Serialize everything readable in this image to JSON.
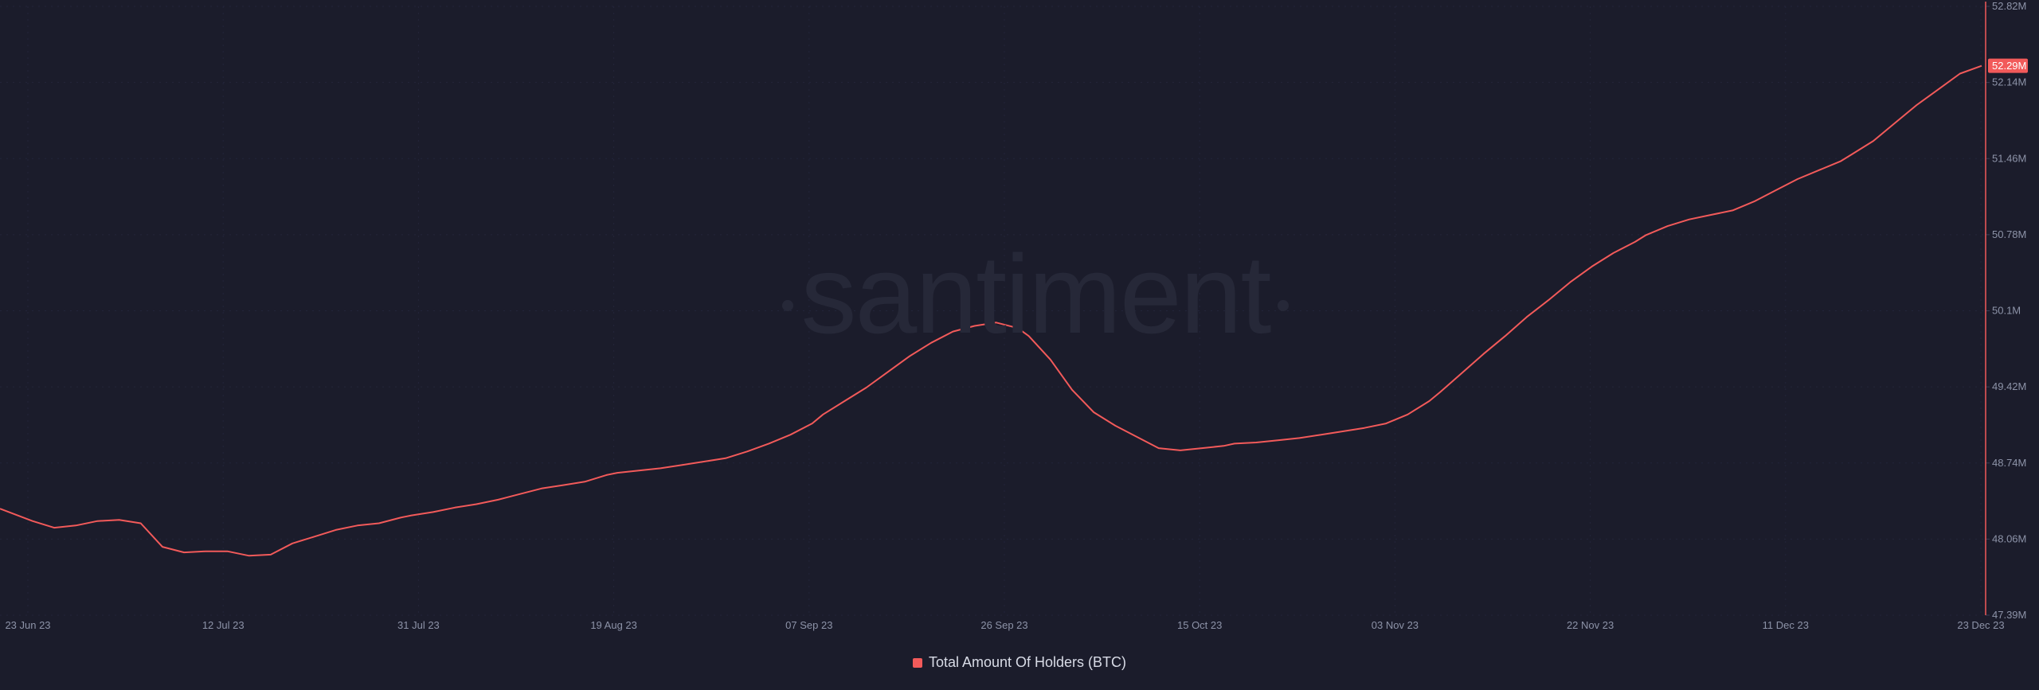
{
  "watermark": "santiment",
  "colors": {
    "background": "#1b1c2b",
    "series": "#f25a5a",
    "grid": "#23253a",
    "tick_text": "#8d93a8"
  },
  "chart_data": {
    "type": "line",
    "title": "",
    "xlabel": "",
    "ylabel": "",
    "grid": true,
    "legend_position": "bottom-center",
    "y_axis_position": "right",
    "ylim": [
      47.39,
      52.82
    ],
    "y_ticks": [
      "52.82M",
      "52.14M",
      "51.46M",
      "50.78M",
      "50.1M",
      "49.42M",
      "48.74M",
      "48.06M",
      "47.39M"
    ],
    "x_ticks": [
      "23 Jun 23",
      "12 Jul 23",
      "31 Jul 23",
      "19 Aug 23",
      "07 Sep 23",
      "26 Sep 23",
      "15 Oct 23",
      "03 Nov 23",
      "22 Nov 23",
      "11 Dec 23",
      "23 Dec 23"
    ],
    "x_range": [
      "2023-06-23",
      "2023-12-23"
    ],
    "last_value_label": "52.29M",
    "series": [
      {
        "name": "Total Amount Of Holders (BTC)",
        "color": "#f25a5a",
        "unit": "M",
        "points": [
          [
            "2023-06-23",
            48.34
          ],
          [
            "2023-06-26",
            48.23
          ],
          [
            "2023-06-28",
            48.17
          ],
          [
            "2023-06-30",
            48.19
          ],
          [
            "2023-07-02",
            48.23
          ],
          [
            "2023-07-04",
            48.24
          ],
          [
            "2023-07-06",
            48.21
          ],
          [
            "2023-07-08",
            48.0
          ],
          [
            "2023-07-10",
            47.95
          ],
          [
            "2023-07-12",
            47.96
          ],
          [
            "2023-07-14",
            47.96
          ],
          [
            "2023-07-16",
            47.92
          ],
          [
            "2023-07-18",
            47.93
          ],
          [
            "2023-07-20",
            48.03
          ],
          [
            "2023-07-22",
            48.09
          ],
          [
            "2023-07-24",
            48.15
          ],
          [
            "2023-07-26",
            48.19
          ],
          [
            "2023-07-28",
            48.21
          ],
          [
            "2023-07-30",
            48.26
          ],
          [
            "2023-07-31",
            48.28
          ],
          [
            "2023-08-02",
            48.31
          ],
          [
            "2023-08-04",
            48.35
          ],
          [
            "2023-08-06",
            48.38
          ],
          [
            "2023-08-08",
            48.42
          ],
          [
            "2023-08-10",
            48.47
          ],
          [
            "2023-08-12",
            48.52
          ],
          [
            "2023-08-14",
            48.55
          ],
          [
            "2023-08-16",
            48.58
          ],
          [
            "2023-08-18",
            48.64
          ],
          [
            "2023-08-19",
            48.66
          ],
          [
            "2023-08-21",
            48.68
          ],
          [
            "2023-08-23",
            48.7
          ],
          [
            "2023-08-25",
            48.73
          ],
          [
            "2023-08-27",
            48.76
          ],
          [
            "2023-08-29",
            48.79
          ],
          [
            "2023-08-31",
            48.85
          ],
          [
            "2023-09-02",
            48.92
          ],
          [
            "2023-09-04",
            49.0
          ],
          [
            "2023-09-06",
            49.1
          ],
          [
            "2023-09-07",
            49.18
          ],
          [
            "2023-09-09",
            49.3
          ],
          [
            "2023-09-11",
            49.42
          ],
          [
            "2023-09-13",
            49.56
          ],
          [
            "2023-09-15",
            49.7
          ],
          [
            "2023-09-17",
            49.82
          ],
          [
            "2023-09-19",
            49.92
          ],
          [
            "2023-09-21",
            49.97
          ],
          [
            "2023-09-23",
            50.0
          ],
          [
            "2023-09-25",
            49.95
          ],
          [
            "2023-09-26",
            49.88
          ],
          [
            "2023-09-28",
            49.67
          ],
          [
            "2023-09-30",
            49.4
          ],
          [
            "2023-10-02",
            49.2
          ],
          [
            "2023-10-04",
            49.08
          ],
          [
            "2023-10-06",
            48.98
          ],
          [
            "2023-10-08",
            48.88
          ],
          [
            "2023-10-10",
            48.86
          ],
          [
            "2023-10-12",
            48.88
          ],
          [
            "2023-10-14",
            48.9
          ],
          [
            "2023-10-15",
            48.92
          ],
          [
            "2023-10-17",
            48.93
          ],
          [
            "2023-10-19",
            48.95
          ],
          [
            "2023-10-21",
            48.97
          ],
          [
            "2023-10-23",
            49.0
          ],
          [
            "2023-10-25",
            49.03
          ],
          [
            "2023-10-27",
            49.06
          ],
          [
            "2023-10-29",
            49.1
          ],
          [
            "2023-10-31",
            49.18
          ],
          [
            "2023-11-02",
            49.3
          ],
          [
            "2023-11-03",
            49.38
          ],
          [
            "2023-11-05",
            49.55
          ],
          [
            "2023-11-07",
            49.72
          ],
          [
            "2023-11-09",
            49.88
          ],
          [
            "2023-11-11",
            50.05
          ],
          [
            "2023-11-13",
            50.2
          ],
          [
            "2023-11-15",
            50.36
          ],
          [
            "2023-11-17",
            50.5
          ],
          [
            "2023-11-19",
            50.62
          ],
          [
            "2023-11-21",
            50.72
          ],
          [
            "2023-11-22",
            50.78
          ],
          [
            "2023-11-24",
            50.86
          ],
          [
            "2023-11-26",
            50.92
          ],
          [
            "2023-11-28",
            50.96
          ],
          [
            "2023-11-30",
            51.0
          ],
          [
            "2023-12-02",
            51.08
          ],
          [
            "2023-12-04",
            51.18
          ],
          [
            "2023-12-06",
            51.28
          ],
          [
            "2023-12-08",
            51.36
          ],
          [
            "2023-12-10",
            51.44
          ],
          [
            "2023-12-11",
            51.5
          ],
          [
            "2023-12-13",
            51.62
          ],
          [
            "2023-12-15",
            51.78
          ],
          [
            "2023-12-17",
            51.94
          ],
          [
            "2023-12-19",
            52.08
          ],
          [
            "2023-12-21",
            52.22
          ],
          [
            "2023-12-23",
            52.29
          ]
        ]
      }
    ]
  }
}
